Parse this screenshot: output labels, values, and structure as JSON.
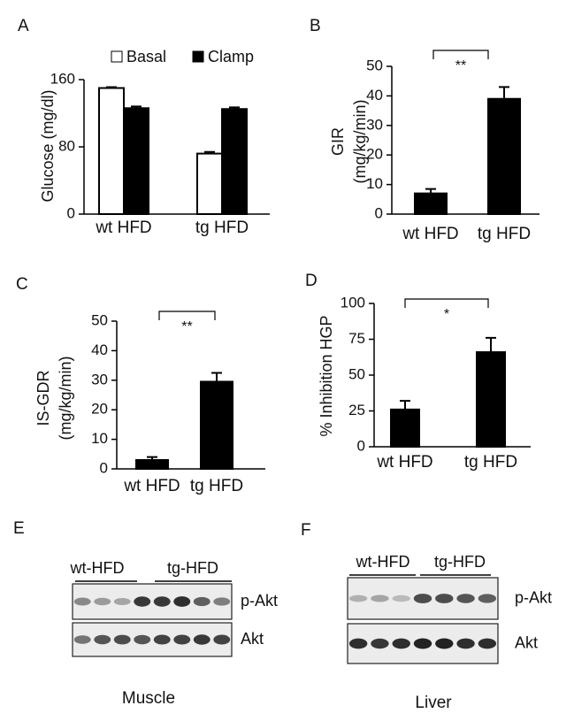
{
  "chart_data": [
    {
      "type": "bar",
      "panel": "A",
      "ylabel": [
        "Glucose (mg/dl)"
      ],
      "categories": [
        "wt HFD",
        "tg HFD"
      ],
      "series": [
        {
          "name": "Basal",
          "color": "#ffffff",
          "values": [
            150,
            72
          ],
          "errors": [
            1,
            2
          ]
        },
        {
          "name": "Clamp",
          "color": "#000000",
          "values": [
            126,
            125
          ],
          "errors": [
            2,
            2
          ]
        }
      ],
      "ylim": [
        0,
        160
      ],
      "yticks": [
        0,
        80,
        160
      ]
    },
    {
      "type": "bar",
      "panel": "B",
      "ylabel": [
        "GIR",
        "(mg/kg/min)"
      ],
      "categories": [
        "wt HFD",
        "tg HFD"
      ],
      "series": [
        {
          "color": "#000000",
          "values": [
            7,
            39
          ],
          "errors": [
            1.5,
            4
          ]
        }
      ],
      "ylim": [
        0,
        50
      ],
      "yticks": [
        0,
        10,
        20,
        30,
        40,
        50
      ],
      "annotation": "**"
    },
    {
      "type": "bar",
      "panel": "C",
      "ylabel": [
        "IS-GDR",
        "(mg/kg/min)"
      ],
      "categories": [
        "wt HFD",
        "tg HFD"
      ],
      "series": [
        {
          "color": "#000000",
          "values": [
            3,
            29.5
          ],
          "errors": [
            1,
            3
          ]
        }
      ],
      "ylim": [
        0,
        50
      ],
      "yticks": [
        0,
        10,
        20,
        30,
        40,
        50
      ],
      "annotation": "**"
    },
    {
      "type": "bar",
      "panel": "D",
      "ylabel": [
        "% Inhibition  HGP"
      ],
      "categories": [
        "wt HFD",
        "tg HFD"
      ],
      "series": [
        {
          "color": "#000000",
          "values": [
            26,
            66
          ],
          "errors": [
            6,
            10
          ]
        }
      ],
      "ylim": [
        0,
        100
      ],
      "yticks": [
        0,
        25,
        50,
        75,
        100
      ],
      "annotation": "*"
    }
  ],
  "blots": [
    {
      "panel": "E",
      "groups": [
        "wt-HFD",
        "tg-HFD"
      ],
      "rows": [
        "p-Akt",
        "Akt"
      ],
      "tissue": "Muscle"
    },
    {
      "panel": "F",
      "groups": [
        "wt-HFD",
        "tg-HFD"
      ],
      "rows": [
        "p-Akt",
        "Akt"
      ],
      "tissue": "Liver"
    }
  ]
}
